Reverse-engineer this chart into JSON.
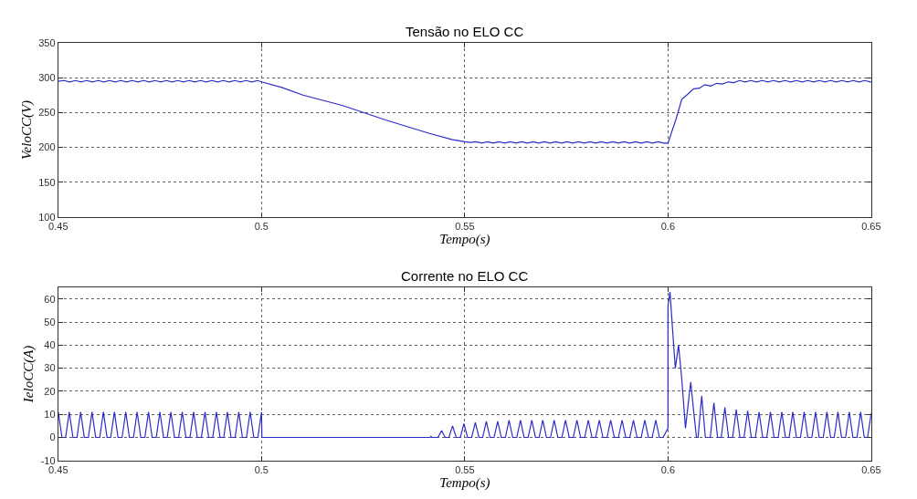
{
  "chart_data": [
    {
      "type": "line",
      "title": "Tensão no ELO CC",
      "xlabel": "Tempo(s)",
      "ylabel": "VeloCC(V)",
      "xlim": [
        0.45,
        0.65
      ],
      "xticks": [
        0.45,
        0.5,
        0.55,
        0.6,
        0.65
      ],
      "ylim": [
        100,
        350
      ],
      "yticks": [
        100,
        150,
        200,
        250,
        300,
        350
      ],
      "grid": true,
      "series": [
        {
          "color": "#2b2bc8",
          "x": [
            0.45,
            0.4514,
            0.4528,
            0.4542,
            0.4556,
            0.457,
            0.4584,
            0.4598,
            0.4612,
            0.4626,
            0.464,
            0.4654,
            0.4668,
            0.4682,
            0.4696,
            0.471,
            0.4724,
            0.4738,
            0.4752,
            0.4766,
            0.478,
            0.4794,
            0.4808,
            0.4822,
            0.4836,
            0.485,
            0.4864,
            0.4878,
            0.4892,
            0.4906,
            0.492,
            0.4934,
            0.4948,
            0.4962,
            0.4976,
            0.499,
            0.5,
            0.505,
            0.5102,
            0.52,
            0.5307,
            0.5413,
            0.547,
            0.55,
            0.5514,
            0.5528,
            0.5542,
            0.5556,
            0.557,
            0.5584,
            0.5598,
            0.5612,
            0.5626,
            0.564,
            0.5654,
            0.5668,
            0.5682,
            0.5696,
            0.571,
            0.5724,
            0.5738,
            0.5752,
            0.5766,
            0.578,
            0.5794,
            0.5808,
            0.5822,
            0.5836,
            0.585,
            0.5864,
            0.5878,
            0.5892,
            0.5906,
            0.592,
            0.5934,
            0.5948,
            0.5962,
            0.5976,
            0.599,
            0.6,
            0.602,
            0.6034,
            0.6048,
            0.6063,
            0.6077,
            0.6091,
            0.6105,
            0.612,
            0.6134,
            0.6148,
            0.6162,
            0.6176,
            0.619,
            0.6204,
            0.6218,
            0.6232,
            0.6246,
            0.626,
            0.6274,
            0.6288,
            0.6302,
            0.6316,
            0.633,
            0.6344,
            0.6358,
            0.6372,
            0.6386,
            0.64,
            0.6414,
            0.6428,
            0.6442,
            0.6456,
            0.647,
            0.6484,
            0.6498,
            0.65
          ],
          "values": [
            295,
            296,
            294,
            296,
            294,
            296,
            294,
            296,
            294,
            296,
            294,
            296,
            294,
            296,
            294,
            296,
            294,
            296,
            294,
            296,
            294,
            296,
            294,
            296,
            294,
            296,
            294,
            296,
            294,
            296,
            294,
            296,
            294,
            296,
            294,
            296,
            294,
            286,
            275,
            260,
            239,
            220,
            211,
            208,
            207,
            208,
            206,
            208,
            206,
            208,
            206,
            208,
            206,
            208,
            206,
            208,
            206,
            208,
            206,
            208,
            206,
            208,
            206,
            208,
            206,
            208,
            206,
            208,
            206,
            208,
            206,
            208,
            206,
            208,
            206,
            208,
            206,
            208,
            206,
            206,
            241,
            269,
            276,
            284,
            285,
            290,
            288,
            292,
            291,
            294,
            293,
            296,
            294,
            296,
            294,
            296,
            294,
            296,
            294,
            296,
            294,
            296,
            294,
            296,
            294,
            296,
            294,
            296,
            294,
            296,
            294,
            296,
            294,
            296,
            294,
            294
          ]
        }
      ]
    },
    {
      "type": "line",
      "title": "Corrente no ELO CC",
      "xlabel": "Tempo(s)",
      "ylabel": "IeloCC(A)",
      "xlim": [
        0.45,
        0.65
      ],
      "xticks": [
        0.45,
        0.5,
        0.55,
        0.6,
        0.65
      ],
      "ylim": [
        -10,
        65
      ],
      "yticks": [
        -10,
        0,
        10,
        20,
        30,
        40,
        50,
        60
      ],
      "grid": true,
      "series": [
        {
          "color": "#2b2bc8",
          "x": [
            0.45,
            0.4509,
            0.4518,
            0.4527,
            0.4536,
            0.4546,
            0.4555,
            0.4564,
            0.4574,
            0.4583,
            0.4592,
            0.4602,
            0.4611,
            0.462,
            0.4629,
            0.4638,
            0.4647,
            0.4657,
            0.4666,
            0.4675,
            0.4685,
            0.4694,
            0.4703,
            0.4713,
            0.4722,
            0.4731,
            0.4741,
            0.475,
            0.4759,
            0.4768,
            0.4777,
            0.4786,
            0.4796,
            0.4805,
            0.4814,
            0.4824,
            0.4833,
            0.4842,
            0.4852,
            0.4861,
            0.487,
            0.488,
            0.4889,
            0.4898,
            0.4907,
            0.4916,
            0.4925,
            0.4935,
            0.4944,
            0.4953,
            0.4963,
            0.4972,
            0.4981,
            0.4991,
            0.5,
            0.5001,
            0.5415,
            0.5417,
            0.5419,
            0.5434,
            0.5443,
            0.5452,
            0.5461,
            0.547,
            0.5479,
            0.5489,
            0.5498,
            0.5507,
            0.5517,
            0.5526,
            0.5535,
            0.5544,
            0.5553,
            0.5562,
            0.5572,
            0.5581,
            0.559,
            0.56,
            0.5609,
            0.5618,
            0.5628,
            0.5637,
            0.5646,
            0.5656,
            0.5665,
            0.5674,
            0.5683,
            0.5692,
            0.5701,
            0.5711,
            0.572,
            0.5729,
            0.5739,
            0.5748,
            0.5757,
            0.5767,
            0.5776,
            0.5785,
            0.5795,
            0.5804,
            0.5813,
            0.5822,
            0.5831,
            0.584,
            0.585,
            0.5859,
            0.5868,
            0.5878,
            0.5887,
            0.5896,
            0.5906,
            0.5915,
            0.5924,
            0.5934,
            0.5943,
            0.5952,
            0.5961,
            0.597,
            0.5979,
            0.5988,
            0.6,
            0.6,
            0.6005,
            0.6012,
            0.6018,
            0.6026,
            0.6034,
            0.6043,
            0.605,
            0.6056,
            0.6064,
            0.607,
            0.6074,
            0.6083,
            0.6092,
            0.6104,
            0.6113,
            0.6122,
            0.6131,
            0.614,
            0.6149,
            0.6159,
            0.6168,
            0.6177,
            0.6187,
            0.6196,
            0.6205,
            0.6215,
            0.6224,
            0.6233,
            0.6243,
            0.6252,
            0.6261,
            0.6271,
            0.628,
            0.6289,
            0.6298,
            0.6307,
            0.6316,
            0.6326,
            0.6335,
            0.6344,
            0.6354,
            0.6363,
            0.6372,
            0.6382,
            0.6391,
            0.64,
            0.6409,
            0.6418,
            0.6427,
            0.6437,
            0.6446,
            0.6455,
            0.6465,
            0.6474,
            0.6483,
            0.6491,
            0.65
          ],
          "values": [
            11,
            0,
            0,
            11,
            0,
            0,
            11,
            0,
            0,
            11,
            0,
            0,
            11,
            0,
            0,
            11,
            0,
            0,
            11,
            0,
            0,
            11,
            0,
            0,
            11,
            0,
            0,
            11,
            0,
            0,
            11,
            0,
            0,
            11,
            0,
            0,
            11,
            0,
            0,
            11,
            0,
            0,
            11,
            0,
            0,
            11,
            0,
            0,
            11,
            0,
            0,
            11,
            0,
            0,
            11,
            0,
            0,
            0.5,
            0,
            0,
            3,
            0,
            0,
            5,
            0,
            0,
            6,
            0,
            0,
            6.5,
            0,
            0,
            7,
            0,
            0,
            7,
            0,
            0,
            7.5,
            0,
            0,
            7.5,
            0,
            0,
            7.5,
            0,
            0,
            7.5,
            0,
            0,
            7.5,
            0,
            0,
            7.5,
            0,
            0,
            7.5,
            0,
            0,
            7.5,
            0,
            0,
            7.5,
            0,
            0,
            7.5,
            0,
            0,
            7.5,
            0,
            0,
            7.5,
            0,
            0,
            7.5,
            0,
            0,
            7.5,
            0,
            0,
            4,
            57,
            63,
            45,
            30,
            40,
            25,
            4,
            15,
            24,
            10,
            0,
            0,
            18,
            0,
            0,
            15,
            0,
            0,
            13,
            0,
            0,
            12,
            0,
            0,
            11.5,
            0,
            0,
            11,
            0,
            0,
            11,
            0,
            0,
            11,
            0,
            0,
            11,
            0,
            0,
            11,
            0,
            0,
            11,
            0,
            0,
            11,
            0,
            0,
            11,
            0,
            0,
            11,
            0,
            0,
            11,
            0,
            0,
            10.5
          ]
        }
      ]
    }
  ]
}
